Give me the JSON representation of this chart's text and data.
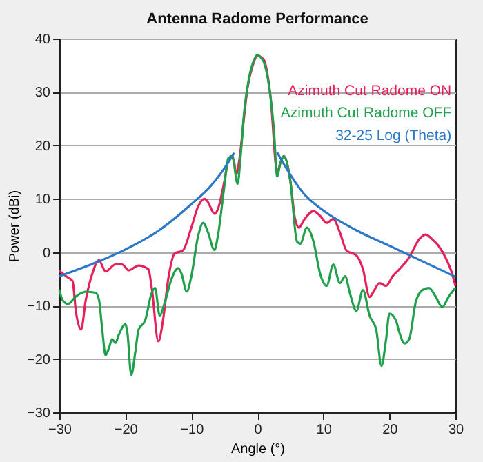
{
  "chart_data": {
    "type": "line",
    "title": "Antenna Radome Performance",
    "xlabel": "Angle (°)",
    "ylabel": "Power (dBi)",
    "xlim": [
      -30,
      30
    ],
    "xticks": [
      -30,
      -20,
      -10,
      0,
      10,
      20,
      30
    ],
    "ylim": [
      -30,
      40
    ],
    "yticks": [
      -30,
      -20,
      -10,
      0,
      10,
      20,
      30,
      40
    ],
    "grid": "y",
    "legend": "top right",
    "line_style": "solid",
    "marker": "none",
    "series": [
      {
        "name": "Azimuth Cut Radome ON",
        "color": "#e8205a",
        "x": [
          -30,
          -29,
          -28,
          -27.5,
          -26.7,
          -26,
          -25,
          -24,
          -23,
          -21.5,
          -20.5,
          -19.5,
          -18,
          -16.5,
          -16,
          -15,
          -14.3,
          -13.5,
          -12.5,
          -11.3,
          -10,
          -9,
          -8,
          -7.5,
          -6.5,
          -6,
          -5,
          -4.5,
          -4,
          -3.5,
          -3.2,
          -2.7,
          -2,
          -1.5,
          -0.7,
          0,
          1,
          2,
          3,
          3.5,
          4,
          5,
          5.7,
          6.3,
          7,
          8.5,
          9.5,
          10.5,
          11.5,
          12.5,
          13.5,
          15,
          16,
          17,
          17.5,
          18.5,
          19.5,
          20.5,
          21.5,
          23,
          24.5,
          25.5,
          26.5,
          27.5,
          28.5,
          29.5,
          30
        ],
        "values": [
          -3.5,
          -4.5,
          -5.4,
          -11,
          -14.5,
          -9,
          -4,
          -1.5,
          -3.6,
          -2.3,
          -2.3,
          -3.4,
          -2.5,
          -3.2,
          -6.7,
          -16.7,
          -12.8,
          -5,
          -0.2,
          0.3,
          4.6,
          8.5,
          10,
          9.4,
          7.2,
          8,
          13.3,
          16.7,
          18,
          16.7,
          14.6,
          17.6,
          25.5,
          30.7,
          35,
          36.8,
          36,
          29,
          15,
          16.8,
          18,
          13.3,
          6.3,
          4.6,
          5.9,
          7.7,
          6.8,
          5.5,
          6.2,
          3.7,
          0.3,
          -0.6,
          -3.2,
          -8.4,
          -7.6,
          -5.8,
          -6.3,
          -4.5,
          -3.2,
          -1,
          2.4,
          3.3,
          2.4,
          1.1,
          -1,
          -4,
          -6.3
        ]
      },
      {
        "name": "Azimuth Cut Radome OFF",
        "color": "#1fa04a",
        "x": [
          -30,
          -29.5,
          -28.7,
          -27.5,
          -26,
          -24.5,
          -24,
          -23.5,
          -23,
          -22.5,
          -22,
          -21.5,
          -21,
          -20,
          -19.7,
          -19.1,
          -18.5,
          -18,
          -17,
          -16,
          -15.5,
          -14.8,
          -14,
          -13,
          -12,
          -11.5,
          -10.7,
          -10,
          -9,
          -8.2,
          -7.5,
          -6.5,
          -6,
          -5,
          -4.4,
          -3.8,
          -3,
          -2.5,
          -2,
          -1.3,
          -0.5,
          0,
          0.5,
          1,
          2,
          2.5,
          3,
          3.5,
          4,
          5,
          6,
          6.5,
          7.5,
          8.5,
          9.5,
          10.5,
          11.5,
          12.5,
          13.3,
          14,
          15,
          16,
          17,
          18,
          18.8,
          19.5,
          20,
          21,
          21.5,
          22.3,
          23,
          24,
          25,
          26,
          27,
          28,
          29,
          30
        ],
        "values": [
          -7,
          -9,
          -9.7,
          -8.3,
          -7.4,
          -7.6,
          -8.9,
          -14.5,
          -19.3,
          -18,
          -16.3,
          -17,
          -15.5,
          -13.5,
          -15,
          -23,
          -18.8,
          -14.5,
          -12.8,
          -7.6,
          -6.7,
          -11.9,
          -9.3,
          -5,
          -3,
          -4,
          -7.4,
          -4.5,
          2.9,
          5.5,
          3.8,
          0.4,
          2.9,
          12.4,
          17.6,
          18,
          12.8,
          18.5,
          26.3,
          32.4,
          36,
          37,
          36.5,
          35.5,
          29,
          23,
          14.2,
          16.8,
          18,
          13.3,
          2,
          1.6,
          4.6,
          2,
          -4,
          -6.3,
          -2.3,
          -5.8,
          -4.5,
          -7.6,
          -11,
          -7.1,
          -11.9,
          -14.5,
          -21.3,
          -16.3,
          -11.5,
          -12.8,
          -15,
          -17.1,
          -16.3,
          -9.3,
          -7.1,
          -6.7,
          -8.3,
          -10.3,
          -8.3,
          -6.7
        ]
      },
      {
        "name": "32-25 Log (Theta)",
        "color": "#2a78c8",
        "x": [
          -30,
          -25,
          -20,
          -15,
          -10,
          -7,
          -5,
          -3.5,
          0,
          3,
          5,
          7,
          10,
          15,
          20,
          25,
          30
        ],
        "values": [
          -4.5,
          -2.2,
          0.5,
          4,
          9,
          12.5,
          15.7,
          18.6,
          null,
          18.7,
          14.5,
          11,
          7.8,
          4.1,
          1.2,
          -1.7,
          -4.6
        ]
      }
    ]
  }
}
